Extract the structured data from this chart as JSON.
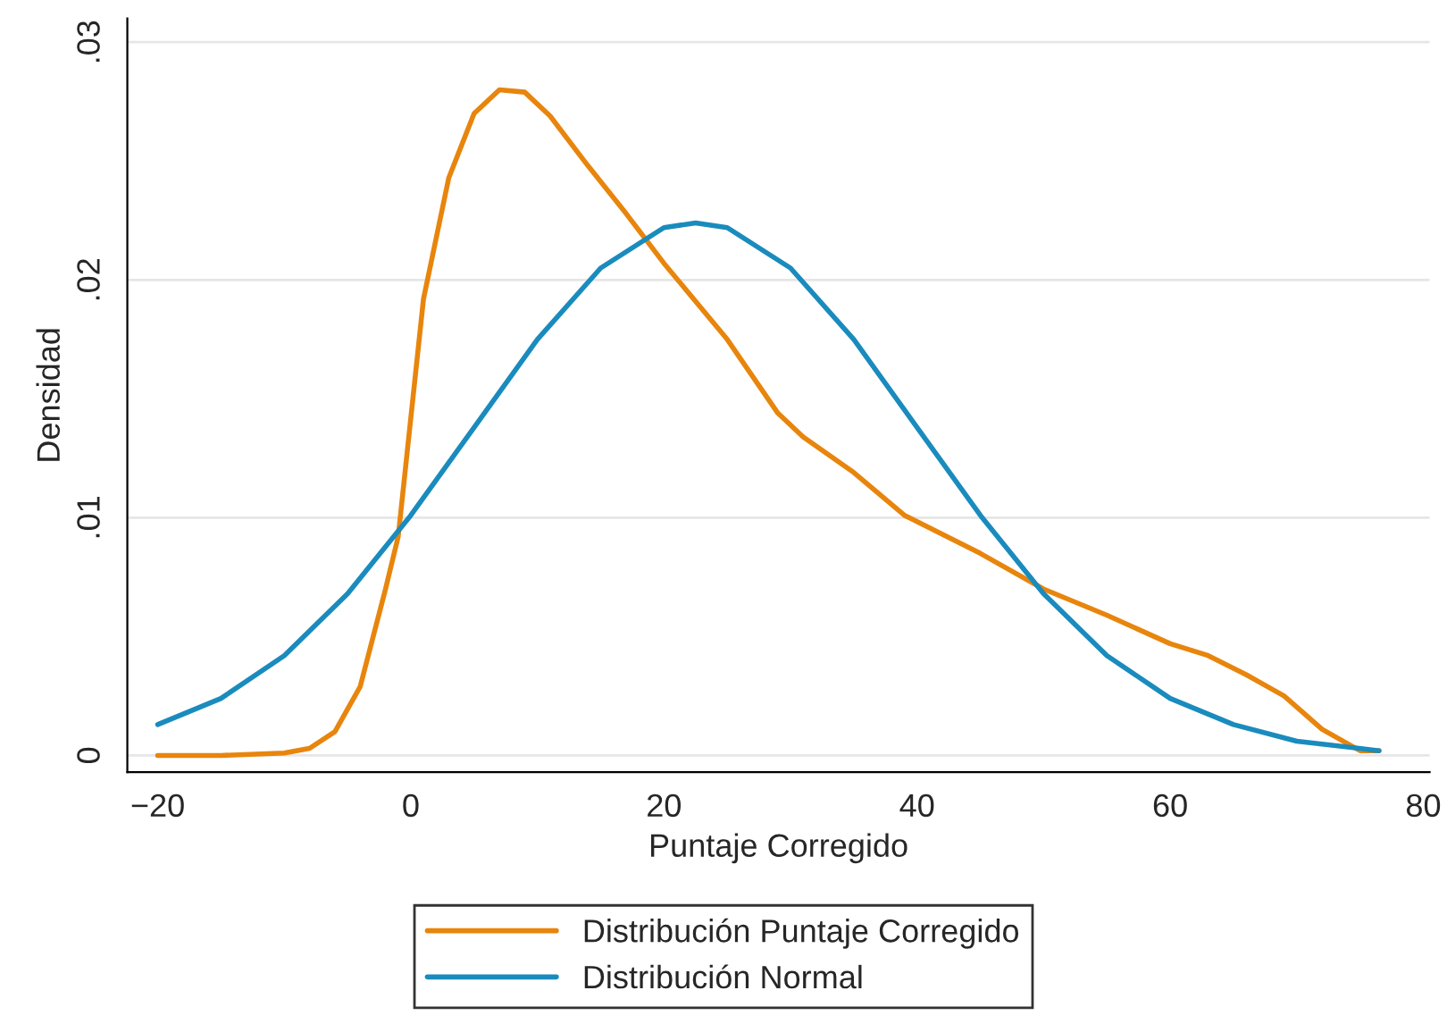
{
  "chart_data": {
    "type": "line",
    "xlabel": "Puntaje Corregido",
    "ylabel": "Densidad",
    "xlim": [
      -22.4,
      80.5
    ],
    "ylim": [
      -0.0007,
      0.031
    ],
    "xticks": [
      {
        "value": -20,
        "label": "−20"
      },
      0,
      20,
      40,
      60,
      80
    ],
    "yticks": [
      {
        "value": 0,
        "label": "0"
      },
      {
        "value": 0.01,
        "label": ".01"
      },
      {
        "value": 0.02,
        "label": ".02"
      },
      {
        "value": 0.03,
        "label": ".03"
      }
    ],
    "grid": "y",
    "legend": "bottom",
    "marker": "none",
    "line_style": "solid",
    "series": [
      {
        "name": "Distribución Puntaje Corregido",
        "color": "#e8850c",
        "x": [
          -20,
          -15,
          -10,
          -8,
          -6,
          -4,
          -2,
          -1,
          1,
          3,
          5,
          7,
          9,
          11,
          14,
          17,
          20,
          25,
          29,
          31,
          35,
          39,
          45,
          50,
          55,
          60,
          63,
          66,
          69,
          72,
          75,
          76.5
        ],
        "values": [
          0,
          0,
          0.0001,
          0.0003,
          0.001,
          0.0029,
          0.007,
          0.0092,
          0.0192,
          0.0243,
          0.027,
          0.028,
          0.0279,
          0.0269,
          0.0248,
          0.0228,
          0.0207,
          0.0175,
          0.0144,
          0.0134,
          0.0119,
          0.0101,
          0.0085,
          0.007,
          0.0059,
          0.0047,
          0.0042,
          0.0034,
          0.0025,
          0.0011,
          0.0002,
          0.0002
        ]
      },
      {
        "name": "Distribución Normal",
        "color": "#1a8bbd",
        "x": [
          -20,
          -15,
          -10,
          -5,
          0,
          5,
          10,
          15,
          20,
          22.5,
          25,
          30,
          35,
          40,
          45,
          50,
          55,
          60,
          65,
          70,
          76.5
        ],
        "values": [
          0.0013,
          0.0024,
          0.0042,
          0.0068,
          0.0101,
          0.0138,
          0.0175,
          0.0205,
          0.0222,
          0.0224,
          0.0222,
          0.0205,
          0.0175,
          0.0138,
          0.0101,
          0.0068,
          0.0042,
          0.0024,
          0.0013,
          0.0006,
          0.0002
        ]
      }
    ]
  }
}
